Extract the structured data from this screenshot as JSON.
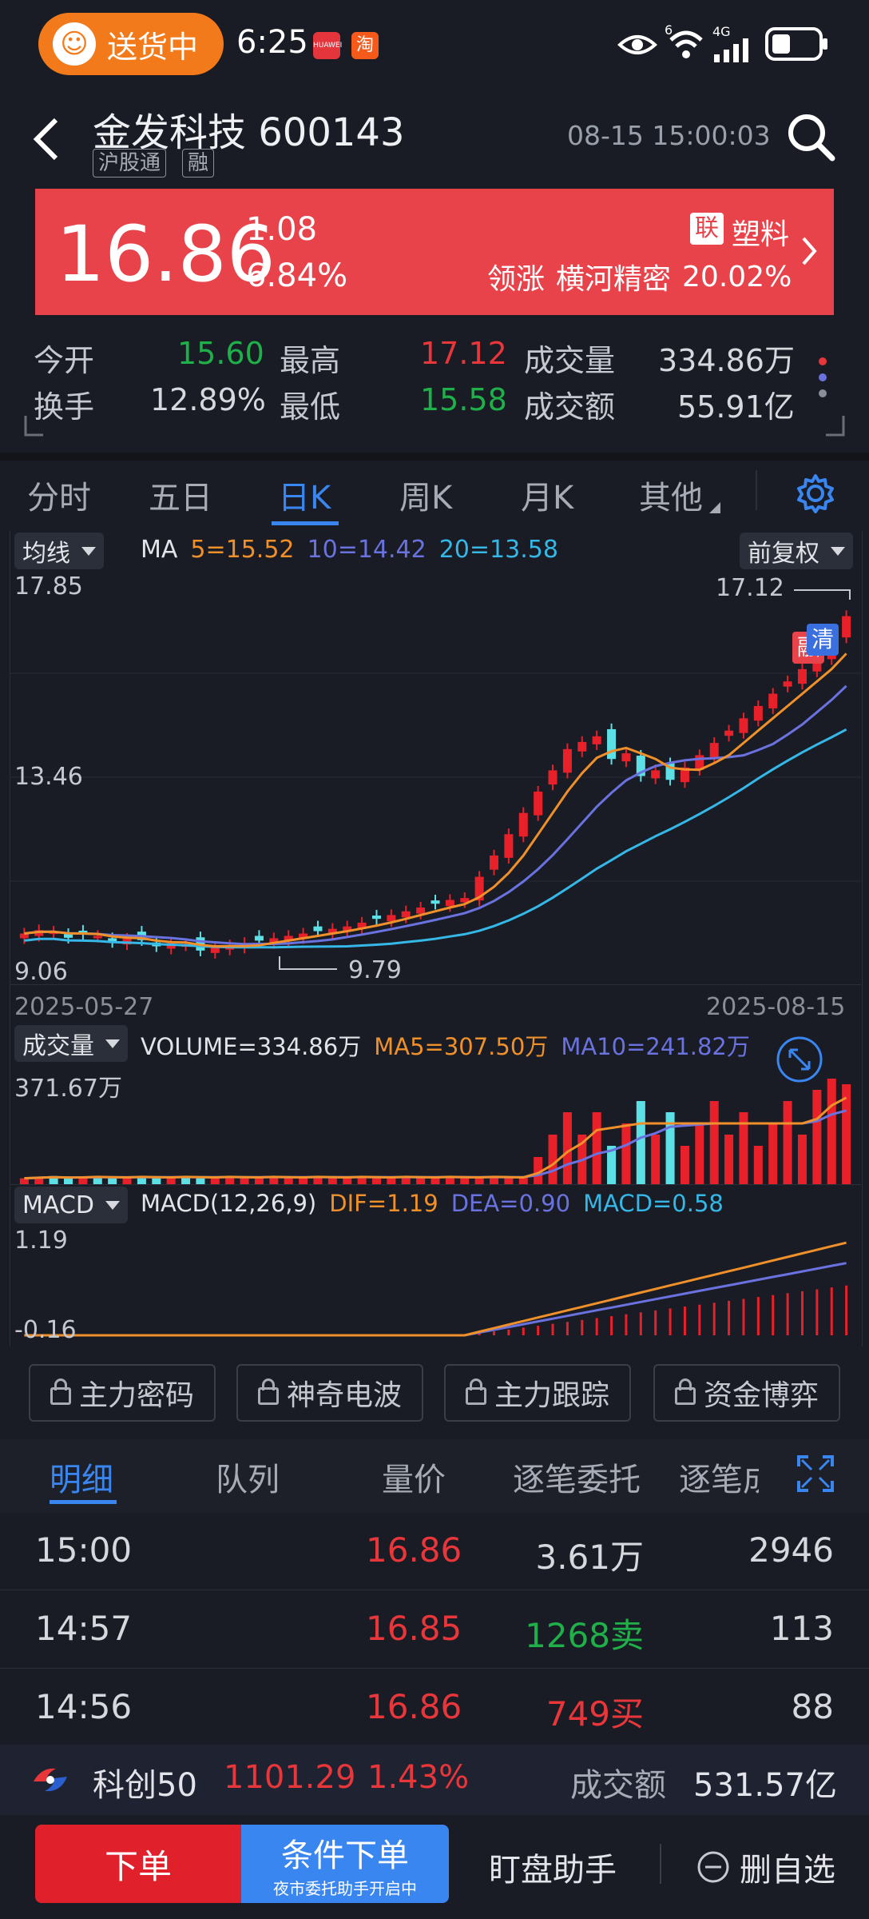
{
  "status_bar": {
    "delivery_label": "送货中",
    "time": "6:25",
    "app_icon_1": "HUAWEI",
    "app_icon_2": "淘",
    "signal_text_1": "6",
    "signal_text_2": "4G"
  },
  "header": {
    "stock_name": "金发科技 600143",
    "tags": [
      "沪股通",
      "融"
    ],
    "timestamp": "08-15 15:00:03"
  },
  "banner": {
    "price": "16.86",
    "change": "1.08",
    "change_pct": "6.84%",
    "lian_badge": "联",
    "sector": "塑料",
    "leader_prefix": "领涨",
    "leader_name": "横河精密",
    "leader_pct": "20.02%"
  },
  "quote": {
    "open_label": "今开",
    "open": "15.60",
    "high_label": "最高",
    "high": "17.12",
    "volume_label": "成交量",
    "volume": "334.86万",
    "turnover_label": "换手",
    "turnover": "12.89%",
    "low_label": "最低",
    "low": "15.58",
    "amount_label": "成交额",
    "amount": "55.91亿"
  },
  "tabs": [
    "分时",
    "五日",
    "日K",
    "周K",
    "月K",
    "其他"
  ],
  "active_tab": "日K",
  "kline": {
    "dropdown": "均线",
    "ma_label": "MA",
    "ma5": "5=15.52",
    "ma10": "10=14.42",
    "ma20": "20=13.58",
    "adjust": "前复权",
    "y_top": "17.85",
    "y_mid": "13.46",
    "y_bottom": "9.06",
    "high_marker": "17.12",
    "low_marker": "9.79",
    "badge_1": "融",
    "badge_2": "清",
    "date_start": "2025-05-27",
    "date_end": "2025-08-15",
    "colors": {
      "ma5": "#f0902a",
      "ma10": "#6a72e0",
      "ma20": "#35b7e8",
      "up": "#e8202a",
      "down": "#5ce0e6"
    }
  },
  "volume": {
    "dropdown": "成交量",
    "volume_text": "VOLUME=334.86万",
    "ma5_text": "MA5=307.50万",
    "ma10_text": "MA10=241.82万",
    "y_top": "371.67万"
  },
  "macd": {
    "dropdown": "MACD",
    "params": "MACD(12,26,9)",
    "dif": "DIF=1.19",
    "dea": "DEA=0.90",
    "macd": "MACD=0.58",
    "y_top": "1.19",
    "y_bottom": "-0.16"
  },
  "features": [
    "主力密码",
    "神奇电波",
    "主力跟踪",
    "资金博弈"
  ],
  "detail_tabs": [
    "明细",
    "队列",
    "量价",
    "逐笔委托",
    "逐笔成"
  ],
  "trades": [
    {
      "time": "15:00",
      "price": "16.86",
      "vol": "3.61万",
      "vol_color": "#d6d8de",
      "count": "2946"
    },
    {
      "time": "14:57",
      "price": "16.85",
      "vol": "1268卖",
      "vol_color": "#1fb04a",
      "count": "113"
    },
    {
      "time": "14:56",
      "price": "16.86",
      "vol": "749买",
      "vol_color": "#e8363a",
      "count": "88"
    }
  ],
  "index_bar": {
    "name": "科创50",
    "value": "1101.29",
    "pct": "1.43%",
    "amount_label": "成交额",
    "amount": "531.57亿"
  },
  "bottom_bar": {
    "order": "下单",
    "cond_order": "条件下单",
    "cond_sub": "夜市委托助手开启中",
    "assistant": "盯盘助手",
    "remove": "删自选"
  }
}
